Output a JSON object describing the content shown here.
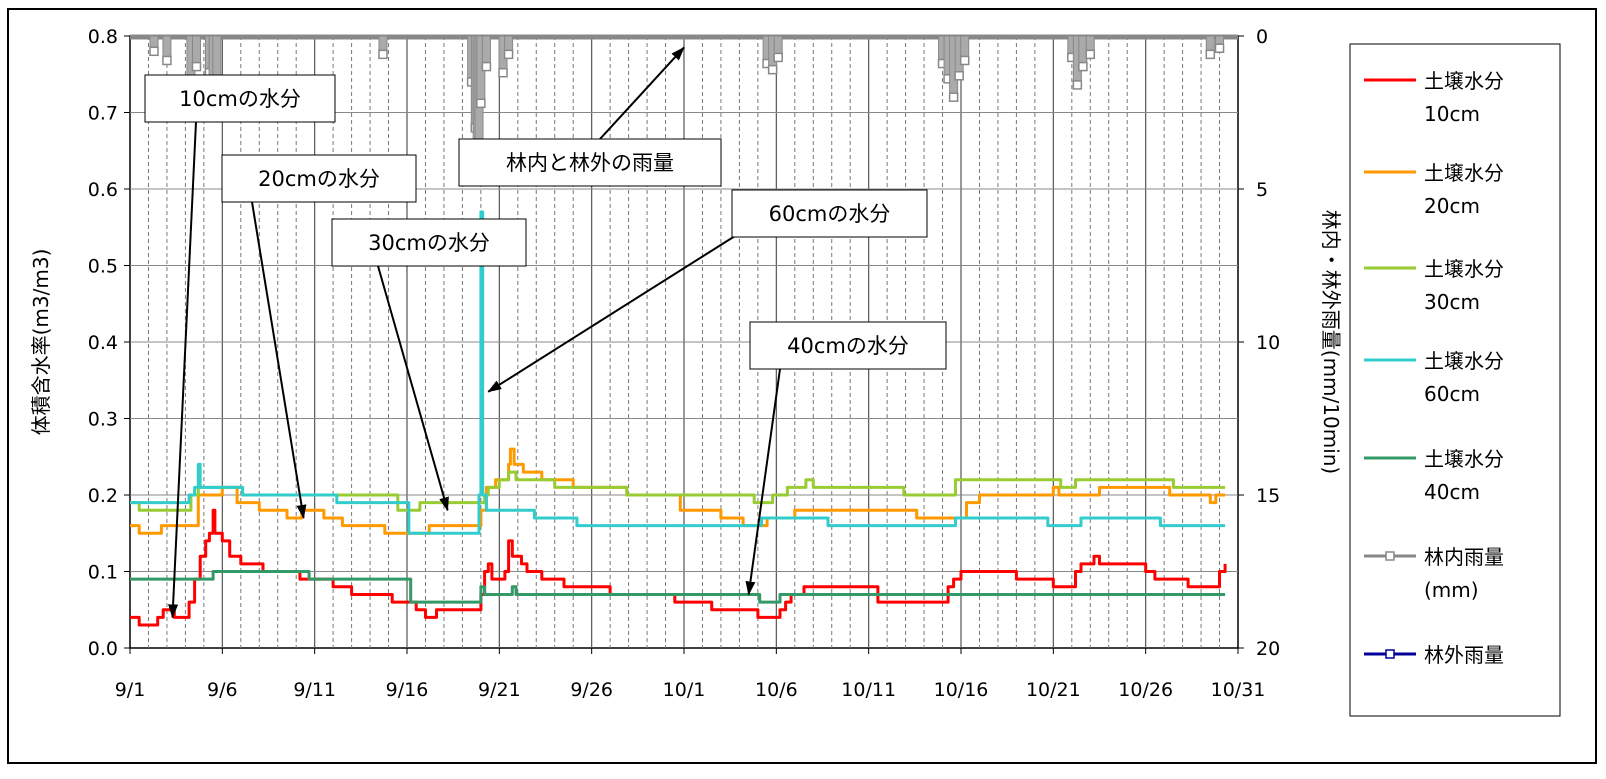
{
  "chart_data": {
    "type": "line",
    "x_range": [
      "9/1",
      "10/31"
    ],
    "x_ticks": [
      "9/1",
      "9/6",
      "9/11",
      "9/16",
      "9/21",
      "9/26",
      "10/1",
      "10/6",
      "10/11",
      "10/16",
      "10/21",
      "10/26",
      "10/31"
    ],
    "y_left": {
      "label": "体積含水率(m3/m3)",
      "ylim": [
        0.0,
        0.8
      ],
      "ticks": [
        "0.0",
        "0.1",
        "0.2",
        "0.3",
        "0.4",
        "0.5",
        "0.6",
        "0.7",
        "0.8"
      ]
    },
    "y_right": {
      "label": "林内・林外雨量(mm/10min)",
      "ylim": [
        20,
        0
      ],
      "reversed": true,
      "ticks": [
        "0",
        "5",
        "10",
        "15",
        "20"
      ]
    },
    "grid": true,
    "legend_position": "right",
    "series": [
      {
        "name": "土壌水分\n10cm",
        "legend": [
          "土壌水分",
          "10cm"
        ],
        "color": "#ff0000",
        "axis": "left",
        "points": [
          [
            1,
            0.04
          ],
          [
            1.4,
            0.04
          ],
          [
            1.5,
            0.03
          ],
          [
            2.2,
            0.03
          ],
          [
            2.5,
            0.04
          ],
          [
            2.8,
            0.05
          ],
          [
            3.2,
            0.05
          ],
          [
            3.4,
            0.04
          ],
          [
            4.0,
            0.04
          ],
          [
            4.2,
            0.06
          ],
          [
            4.5,
            0.09
          ],
          [
            4.8,
            0.12
          ],
          [
            5.1,
            0.14
          ],
          [
            5.3,
            0.15
          ],
          [
            5.5,
            0.18
          ],
          [
            5.6,
            0.15
          ],
          [
            6.0,
            0.14
          ],
          [
            6.4,
            0.12
          ],
          [
            7.0,
            0.11
          ],
          [
            8.2,
            0.1
          ],
          [
            10.2,
            0.09
          ],
          [
            11.5,
            0.09
          ],
          [
            12.0,
            0.08
          ],
          [
            13.0,
            0.07
          ],
          [
            15.2,
            0.06
          ],
          [
            16.5,
            0.05
          ],
          [
            17.0,
            0.04
          ],
          [
            17.6,
            0.05
          ],
          [
            19.8,
            0.05
          ],
          [
            20.0,
            0.07
          ],
          [
            20.2,
            0.1
          ],
          [
            20.4,
            0.11
          ],
          [
            20.6,
            0.09
          ],
          [
            21.3,
            0.1
          ],
          [
            21.5,
            0.14
          ],
          [
            21.7,
            0.12
          ],
          [
            22.2,
            0.11
          ],
          [
            22.5,
            0.1
          ],
          [
            23.3,
            0.09
          ],
          [
            24.5,
            0.08
          ],
          [
            27.0,
            0.07
          ],
          [
            30.5,
            0.06
          ],
          [
            31.0,
            0.06
          ],
          [
            32.5,
            0.05
          ],
          [
            34.8,
            0.05
          ],
          [
            35.0,
            0.04
          ],
          [
            36.2,
            0.05
          ],
          [
            36.5,
            0.06
          ],
          [
            36.8,
            0.07
          ],
          [
            37.5,
            0.08
          ],
          [
            39.3,
            0.08
          ],
          [
            41.5,
            0.06
          ],
          [
            45.0,
            0.06
          ],
          [
            45.3,
            0.08
          ],
          [
            45.6,
            0.09
          ],
          [
            46.0,
            0.1
          ],
          [
            49.0,
            0.09
          ],
          [
            51.0,
            0.08
          ],
          [
            52.0,
            0.08
          ],
          [
            52.2,
            0.1
          ],
          [
            52.5,
            0.11
          ],
          [
            53.2,
            0.12
          ],
          [
            53.5,
            0.11
          ],
          [
            55.0,
            0.11
          ],
          [
            56.0,
            0.1
          ],
          [
            56.5,
            0.09
          ],
          [
            58.3,
            0.08
          ],
          [
            59.8,
            0.08
          ],
          [
            60.0,
            0.1
          ],
          [
            60.3,
            0.11
          ]
        ]
      },
      {
        "name": "土壌水分\n20cm",
        "legend": [
          "土壌水分",
          "20cm"
        ],
        "color": "#ff9900",
        "axis": "left",
        "points": [
          [
            1,
            0.16
          ],
          [
            1.4,
            0.16
          ],
          [
            1.5,
            0.15
          ],
          [
            2.5,
            0.15
          ],
          [
            2.7,
            0.16
          ],
          [
            4.5,
            0.16
          ],
          [
            4.7,
            0.2
          ],
          [
            5.5,
            0.2
          ],
          [
            6.0,
            0.21
          ],
          [
            6.8,
            0.19
          ],
          [
            7.9,
            0.19
          ],
          [
            8.0,
            0.18
          ],
          [
            9.5,
            0.17
          ],
          [
            10.3,
            0.18
          ],
          [
            11.5,
            0.17
          ],
          [
            12.5,
            0.16
          ],
          [
            14.5,
            0.16
          ],
          [
            14.8,
            0.15
          ],
          [
            16.3,
            0.15
          ],
          [
            17.2,
            0.16
          ],
          [
            19.8,
            0.16
          ],
          [
            20.0,
            0.18
          ],
          [
            20.3,
            0.21
          ],
          [
            20.8,
            0.22
          ],
          [
            21.5,
            0.24
          ],
          [
            21.6,
            0.26
          ],
          [
            21.8,
            0.24
          ],
          [
            22.3,
            0.23
          ],
          [
            23.3,
            0.22
          ],
          [
            25.0,
            0.21
          ],
          [
            27.5,
            0.21
          ],
          [
            27.9,
            0.2
          ],
          [
            30.5,
            0.2
          ],
          [
            30.8,
            0.18
          ],
          [
            33.0,
            0.17
          ],
          [
            34.2,
            0.16
          ],
          [
            35.0,
            0.16
          ],
          [
            35.5,
            0.17
          ],
          [
            37.0,
            0.18
          ],
          [
            43.3,
            0.18
          ],
          [
            43.6,
            0.17
          ],
          [
            46.0,
            0.17
          ],
          [
            46.3,
            0.19
          ],
          [
            47.0,
            0.2
          ],
          [
            50.7,
            0.2
          ],
          [
            51.0,
            0.21
          ],
          [
            51.3,
            0.2
          ],
          [
            53.0,
            0.2
          ],
          [
            53.5,
            0.21
          ],
          [
            57.0,
            0.21
          ],
          [
            57.3,
            0.2
          ],
          [
            59.0,
            0.2
          ],
          [
            59.5,
            0.19
          ],
          [
            59.8,
            0.2
          ],
          [
            60.3,
            0.2
          ]
        ]
      },
      {
        "name": "土壌水分\n30cm",
        "legend": [
          "土壌水分",
          "30cm"
        ],
        "color": "#99cc33",
        "axis": "left",
        "points": [
          [
            1,
            0.19
          ],
          [
            1.4,
            0.19
          ],
          [
            1.5,
            0.18
          ],
          [
            4.0,
            0.18
          ],
          [
            4.3,
            0.2
          ],
          [
            4.7,
            0.21
          ],
          [
            7.0,
            0.21
          ],
          [
            7.1,
            0.2
          ],
          [
            14.5,
            0.2
          ],
          [
            15.5,
            0.18
          ],
          [
            16.6,
            0.18
          ],
          [
            16.7,
            0.19
          ],
          [
            20.0,
            0.19
          ],
          [
            20.2,
            0.2
          ],
          [
            20.4,
            0.21
          ],
          [
            21.0,
            0.22
          ],
          [
            21.5,
            0.23
          ],
          [
            21.9,
            0.22
          ],
          [
            23.5,
            0.22
          ],
          [
            24.0,
            0.21
          ],
          [
            27.5,
            0.21
          ],
          [
            27.9,
            0.2
          ],
          [
            34.5,
            0.2
          ],
          [
            34.8,
            0.19
          ],
          [
            35.6,
            0.19
          ],
          [
            35.8,
            0.2
          ],
          [
            36.6,
            0.21
          ],
          [
            37.6,
            0.22
          ],
          [
            38.0,
            0.21
          ],
          [
            42.5,
            0.21
          ],
          [
            42.9,
            0.2
          ],
          [
            45.5,
            0.2
          ],
          [
            45.7,
            0.22
          ],
          [
            51.2,
            0.22
          ],
          [
            51.4,
            0.21
          ],
          [
            52.0,
            0.21
          ],
          [
            52.2,
            0.22
          ],
          [
            57.3,
            0.22
          ],
          [
            57.5,
            0.21
          ],
          [
            60.3,
            0.21
          ]
        ]
      },
      {
        "name": "土壌水分\n60cm",
        "legend": [
          "土壌水分",
          "60cm"
        ],
        "color": "#33cccc",
        "axis": "left",
        "points": [
          [
            1,
            0.19
          ],
          [
            3.8,
            0.19
          ],
          [
            4.2,
            0.2
          ],
          [
            4.5,
            0.21
          ],
          [
            4.7,
            0.24
          ],
          [
            4.8,
            0.21
          ],
          [
            7.0,
            0.21
          ],
          [
            7.1,
            0.2
          ],
          [
            12.0,
            0.2
          ],
          [
            12.2,
            0.19
          ],
          [
            15.9,
            0.19
          ],
          [
            16.1,
            0.15
          ],
          [
            19.8,
            0.15
          ],
          [
            19.9,
            0.2
          ],
          [
            20.0,
            0.57
          ],
          [
            20.1,
            0.2
          ],
          [
            20.3,
            0.18
          ],
          [
            22.5,
            0.18
          ],
          [
            22.9,
            0.17
          ],
          [
            25.0,
            0.17
          ],
          [
            25.2,
            0.16
          ],
          [
            35.0,
            0.16
          ],
          [
            35.2,
            0.17
          ],
          [
            38.5,
            0.17
          ],
          [
            38.8,
            0.16
          ],
          [
            45.5,
            0.16
          ],
          [
            45.7,
            0.17
          ],
          [
            50.5,
            0.17
          ],
          [
            50.7,
            0.16
          ],
          [
            52.3,
            0.16
          ],
          [
            52.5,
            0.17
          ],
          [
            56.5,
            0.17
          ],
          [
            56.8,
            0.16
          ],
          [
            60.3,
            0.16
          ]
        ]
      },
      {
        "name": "土壌水分\n40cm",
        "legend": [
          "土壌水分",
          "40cm"
        ],
        "color": "#339966",
        "axis": "left",
        "points": [
          [
            1,
            0.09
          ],
          [
            5.3,
            0.09
          ],
          [
            5.5,
            0.1
          ],
          [
            10.5,
            0.1
          ],
          [
            10.7,
            0.09
          ],
          [
            16.0,
            0.09
          ],
          [
            16.2,
            0.06
          ],
          [
            19.8,
            0.06
          ],
          [
            20.0,
            0.08
          ],
          [
            20.2,
            0.07
          ],
          [
            21.5,
            0.07
          ],
          [
            21.7,
            0.08
          ],
          [
            21.9,
            0.07
          ],
          [
            35.0,
            0.07
          ],
          [
            35.1,
            0.06
          ],
          [
            36.0,
            0.06
          ],
          [
            36.2,
            0.07
          ],
          [
            60.3,
            0.07
          ]
        ]
      },
      {
        "name": "林内雨量\n(mm)",
        "legend": [
          "林内雨量",
          "(mm)"
        ],
        "color": "#888888",
        "axis": "right",
        "marker": "square",
        "points": [
          [
            2.3,
            0.5
          ],
          [
            3.0,
            0.8
          ],
          [
            4.3,
            1.5
          ],
          [
            4.6,
            1.0
          ],
          [
            5.3,
            1.2
          ],
          [
            5.5,
            2.4
          ],
          [
            5.7,
            1.6
          ],
          [
            14.7,
            0.6
          ],
          [
            19.5,
            1.5
          ],
          [
            19.7,
            3.0
          ],
          [
            19.8,
            4.5
          ],
          [
            19.9,
            3.5
          ],
          [
            20.0,
            2.2
          ],
          [
            20.3,
            1.0
          ],
          [
            21.2,
            1.2
          ],
          [
            21.5,
            0.6
          ],
          [
            35.5,
            0.9
          ],
          [
            35.8,
            1.1
          ],
          [
            36.1,
            0.7
          ],
          [
            45.0,
            0.9
          ],
          [
            45.3,
            1.4
          ],
          [
            45.6,
            2.0
          ],
          [
            45.9,
            1.3
          ],
          [
            46.2,
            0.8
          ],
          [
            52.0,
            0.7
          ],
          [
            52.3,
            1.6
          ],
          [
            52.6,
            1.0
          ],
          [
            53.0,
            0.6
          ],
          [
            59.5,
            0.6
          ],
          [
            60.0,
            0.4
          ]
        ]
      },
      {
        "name": "林外雨量",
        "legend": [
          "林外雨量"
        ],
        "color": "#000099",
        "axis": "right",
        "marker": "square",
        "points": []
      }
    ],
    "annotations": [
      {
        "text": "10cmの水分",
        "target": [
          3.3,
          0.04
        ]
      },
      {
        "text": "20cmの水分",
        "target": [
          10.4,
          0.17
        ]
      },
      {
        "text": "30cmの水分",
        "target": [
          18.2,
          0.18
        ]
      },
      {
        "text": "60cmの水分",
        "target": [
          20.4,
          0.335
        ]
      },
      {
        "text": "40cmの水分",
        "target": [
          34.5,
          0.07
        ]
      },
      {
        "text": "林内と林外の雨量",
        "target": [
          31.0,
          0.785
        ]
      }
    ]
  }
}
